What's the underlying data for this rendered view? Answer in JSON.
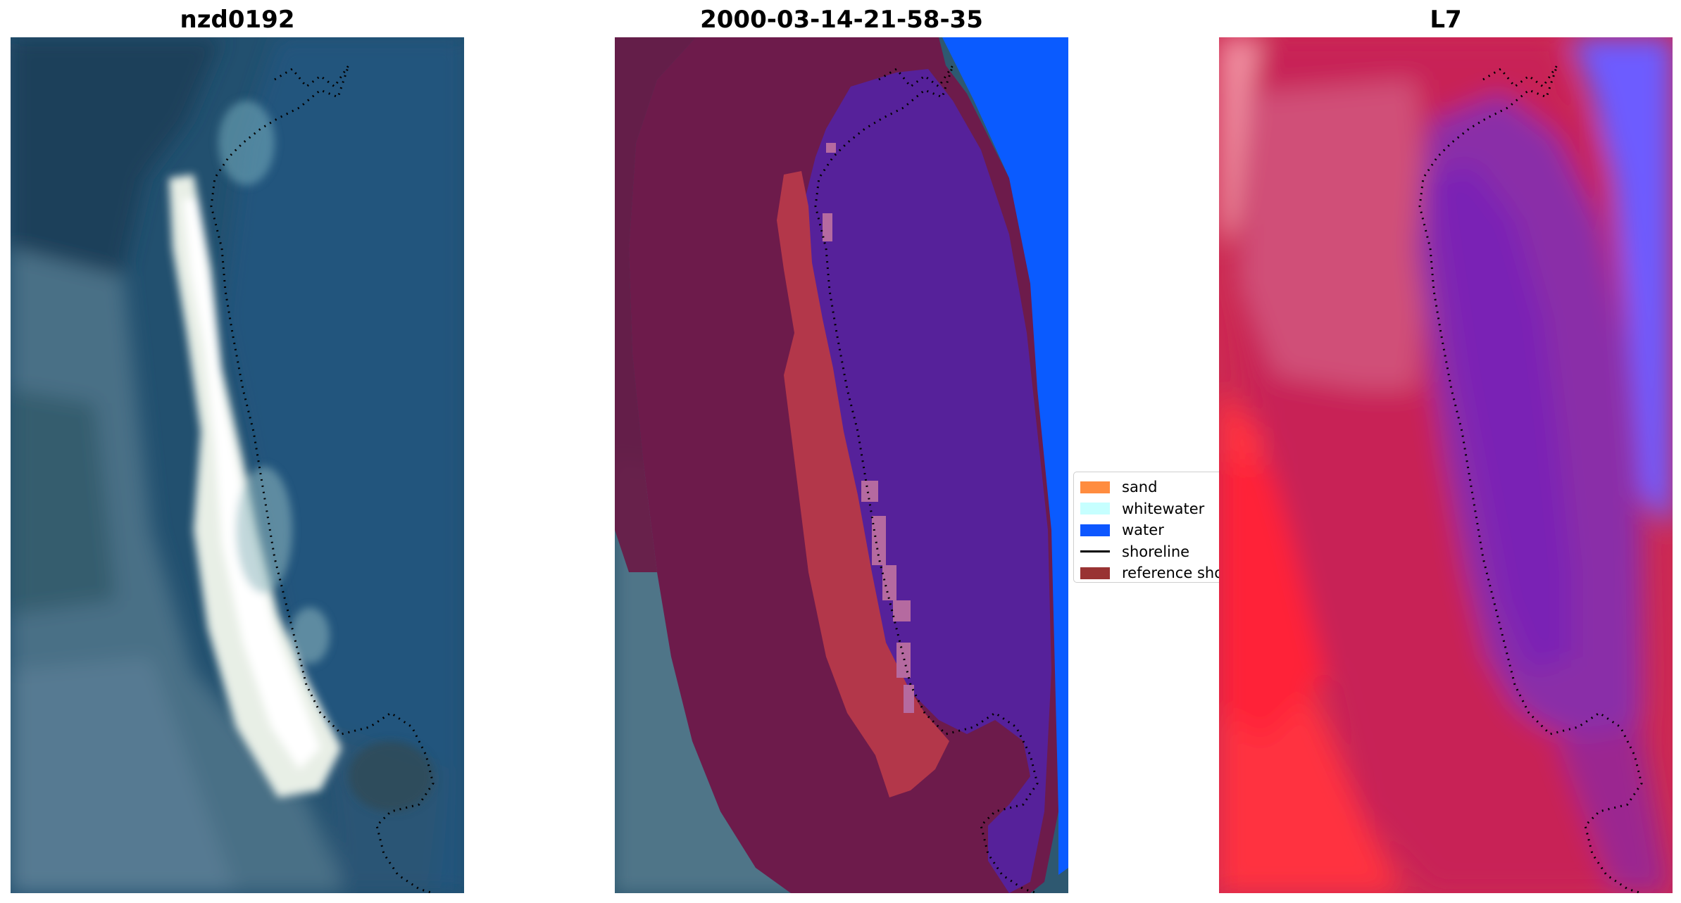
{
  "panels": [
    {
      "title": "nzd0192",
      "image": "rgb-satellite-image"
    },
    {
      "title": "2000-03-14-21-58-35",
      "image": "classified-image"
    },
    {
      "title": "L7",
      "image": "water-index-image"
    }
  ],
  "legend": {
    "items": [
      {
        "label": "sand",
        "color": "#ff8c3f",
        "kind": "patch"
      },
      {
        "label": "whitewater",
        "color": "#c6ffff",
        "kind": "patch"
      },
      {
        "label": "water",
        "color": "#0d57ff",
        "kind": "patch"
      },
      {
        "label": "shoreline",
        "color": "#000000",
        "kind": "line"
      },
      {
        "label": "reference shoreline",
        "color": "#993333",
        "kind": "patch"
      }
    ]
  }
}
